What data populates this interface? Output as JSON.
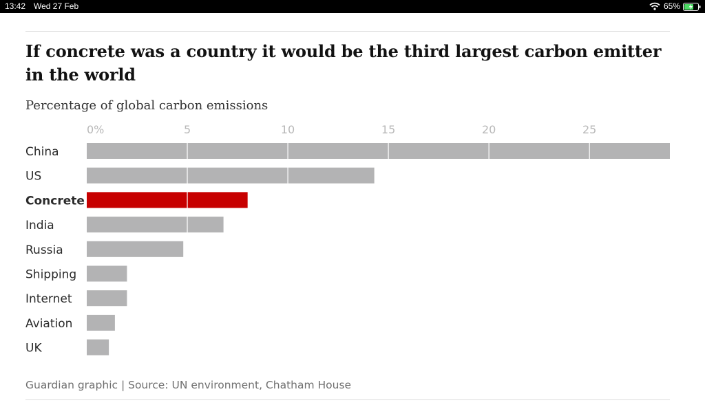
{
  "status_bar": {
    "time": "13:42",
    "date": "Wed 27 Feb",
    "battery": "65%",
    "wifi_icon": "wifi-icon",
    "battery_icon": "battery-charging-icon"
  },
  "colors": {
    "bar": "#b3b3b4",
    "highlight": "#c70000",
    "gridline": "#ffffff",
    "tick_label": "#b8b8b8",
    "category_label": "#2b2b2b"
  },
  "chart_data": {
    "type": "bar",
    "orientation": "horizontal",
    "title": "If concrete was a country it would be the third largest carbon emitter in the world",
    "subtitle": "Percentage of global carbon emissions",
    "categories": [
      "China",
      "US",
      "Concrete",
      "India",
      "Russia",
      "Shipping",
      "Internet",
      "Aviation",
      "UK"
    ],
    "values": [
      29,
      14.3,
      8,
      6.8,
      4.8,
      2,
      2,
      1.4,
      1.1
    ],
    "highlight": "Concrete",
    "x_ticks": [
      0,
      5,
      10,
      15,
      20,
      25
    ],
    "x_tick_labels": [
      "0%",
      "5",
      "10",
      "15",
      "20",
      "25"
    ],
    "xlim": [
      0,
      29
    ],
    "grid": true,
    "source": "Guardian graphic | Source: UN environment, Chatham House"
  }
}
